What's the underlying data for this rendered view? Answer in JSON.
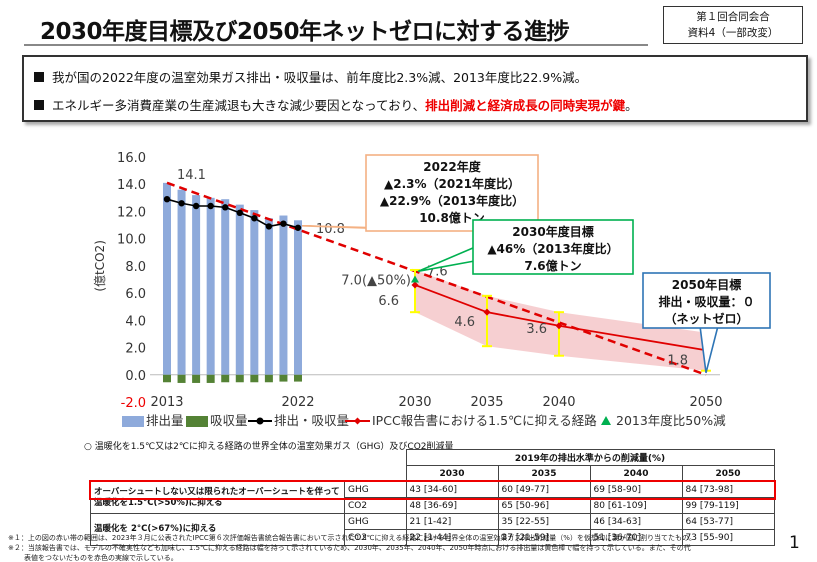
{
  "header": {
    "title": "2030年度目標及び2050年ネットゼロに対する進捗",
    "meeting": "第１回合同会合",
    "doc": "資料4（一部改変）"
  },
  "summary": {
    "line1": "我が国の2022年度の温室効果ガス排出・吸収量は、前年度比2.3%減、2013年度比22.9%減。",
    "line2_a": "エネルギー多消費産業の生産減退も大きな減少要因となっており、",
    "line2_b": "排出削減と経済成長の同時実現が鍵",
    "line2_c": "。"
  },
  "chart_data": {
    "type": "bar",
    "ylabel": "(億tCO2)",
    "ylim": [
      -2.0,
      16.0
    ],
    "yticks": [
      "-2.0",
      "0.0",
      "2.0",
      "4.0",
      "6.0",
      "8.0",
      "10.0",
      "12.0",
      "14.0",
      "16.0"
    ],
    "xticks": [
      {
        "year": 2013,
        "label": "2013"
      },
      {
        "year": 2022,
        "label": "2022"
      },
      {
        "year": 2030,
        "label": "2030"
      },
      {
        "year": 2035,
        "label": "2035"
      },
      {
        "year": 2040,
        "label": "2040"
      },
      {
        "year": 2050,
        "label": "2050"
      }
    ],
    "colors": {
      "emission": "#8eaadb",
      "removal": "#548235",
      "net": "#000000",
      "ipcc": "#e00000",
      "target": "#e00000",
      "marker": "#00b050",
      "band": "#f4c7c9",
      "range": "#ffff00"
    },
    "series": [
      {
        "name": "排出量",
        "years": [
          2013,
          2014,
          2015,
          2016,
          2017,
          2018,
          2019,
          2020,
          2021,
          2022
        ],
        "values": [
          14.1,
          13.6,
          13.2,
          13.0,
          12.9,
          12.5,
          12.1,
          11.5,
          11.7,
          11.35
        ]
      },
      {
        "name": "吸収量",
        "years": [
          2013,
          2014,
          2015,
          2016,
          2017,
          2018,
          2019,
          2020,
          2021,
          2022
        ],
        "values": [
          -0.55,
          -0.6,
          -0.6,
          -0.6,
          -0.55,
          -0.55,
          -0.55,
          -0.55,
          -0.5,
          -0.5
        ]
      },
      {
        "name": "排出・吸収量",
        "years": [
          2013,
          2014,
          2015,
          2016,
          2017,
          2018,
          2019,
          2020,
          2021,
          2022
        ],
        "values": [
          12.9,
          12.6,
          12.4,
          12.4,
          12.3,
          11.9,
          11.5,
          10.9,
          11.1,
          10.8
        ]
      },
      {
        "name": "IPCC報告書における1.5℃に抑える経路",
        "years": [
          2030,
          2035,
          2040,
          2050
        ],
        "values": [
          6.6,
          4.6,
          3.6,
          1.8
        ]
      }
    ],
    "ipcc_ranges": [
      {
        "year": 2030,
        "low": 4.6,
        "high": 7.7
      },
      {
        "year": 2035,
        "low": 2.1,
        "high": 5.8
      },
      {
        "year": 2040,
        "low": 1.4,
        "high": 4.6
      },
      {
        "year": 2050,
        "low": 0.3,
        "high": 3.1
      }
    ],
    "target_path": {
      "years": [
        2013,
        2050
      ],
      "values": [
        14.1,
        0
      ]
    },
    "marker_50": {
      "year": 2030,
      "value": 7.0
    },
    "labels": {
      "v2013": "14.1",
      "v2022": "10.8",
      "v2030_target": "7.6",
      "v2030_half": "7.0(▲50%)",
      "v2030_ipcc": "6.6",
      "v2035": "4.6",
      "v2040": "3.6",
      "v2050": "1.8"
    },
    "legend": [
      "排出量",
      "吸収量",
      "排出・吸収量",
      "IPCC報告書における1.5℃に抑える経路",
      "2013年度比50%減"
    ]
  },
  "callouts": {
    "c2022": [
      "2022年度",
      "▲2.3%（2021年度比）",
      "▲22.9%（2013年度比）",
      "10.8億トン"
    ],
    "c2030": [
      "2030年度目標",
      "▲46%（2013年度比）",
      "7.6億トン"
    ],
    "c2050": [
      "2050年目標",
      "排出・吸収量：０",
      "（ネットゼロ）"
    ]
  },
  "table": {
    "note": "○ 温暖化を1.5℃又は2℃に抑える経路の世界全体の温室効果ガス（GHG）及びCO2削減量",
    "group_header": "2019年の排出水準からの削減量(%)",
    "years": [
      "2030",
      "2035",
      "2040",
      "2050"
    ],
    "rows": [
      {
        "scenario": "オーバーシュートしない又は限られたオーバーシュートを伴って温暖化を1.5°C(>50%)に抑える",
        "gas": "GHG",
        "vals": [
          "43 [34-60]",
          "60 [49-77]",
          "69 [58-90]",
          "84 [73-98]"
        ]
      },
      {
        "scenario": "",
        "gas": "CO2",
        "vals": [
          "48 [36-69]",
          "65 [50-96]",
          "80 [61-109]",
          "99 [79-119]"
        ]
      },
      {
        "scenario": "温暖化を 2°C(>67%)に抑える",
        "gas": "GHG",
        "vals": [
          "21 [1-42]",
          "35 [22-55]",
          "46 [34-63]",
          "64 [53-77]"
        ]
      },
      {
        "scenario": "",
        "gas": "CO2",
        "vals": [
          "22 [1-44]",
          "37 [21-59]",
          "51 [36-70]",
          "73 [55-90]"
        ]
      }
    ]
  },
  "footnotes": [
    "※１：上の図の赤い帯の範囲は、2023年３月に公表されたIPCC第６次評価報告書統合報告書において示された1.5℃に抑える経路における世界全体の温室効果ガス排出削減量（%）を仮想的に我が国に割り当てたもの。",
    "※２：当該報告書では、モデルの不確実性なども加味し、1.5℃に抑える経路は幅を持って示されているため、2030年、2035年、2040年、2050年時点における排出量は黄色棒で幅を持って示している。また、その代",
    "表値をつないだものを赤色の実線で示している。"
  ],
  "page_number": "1"
}
